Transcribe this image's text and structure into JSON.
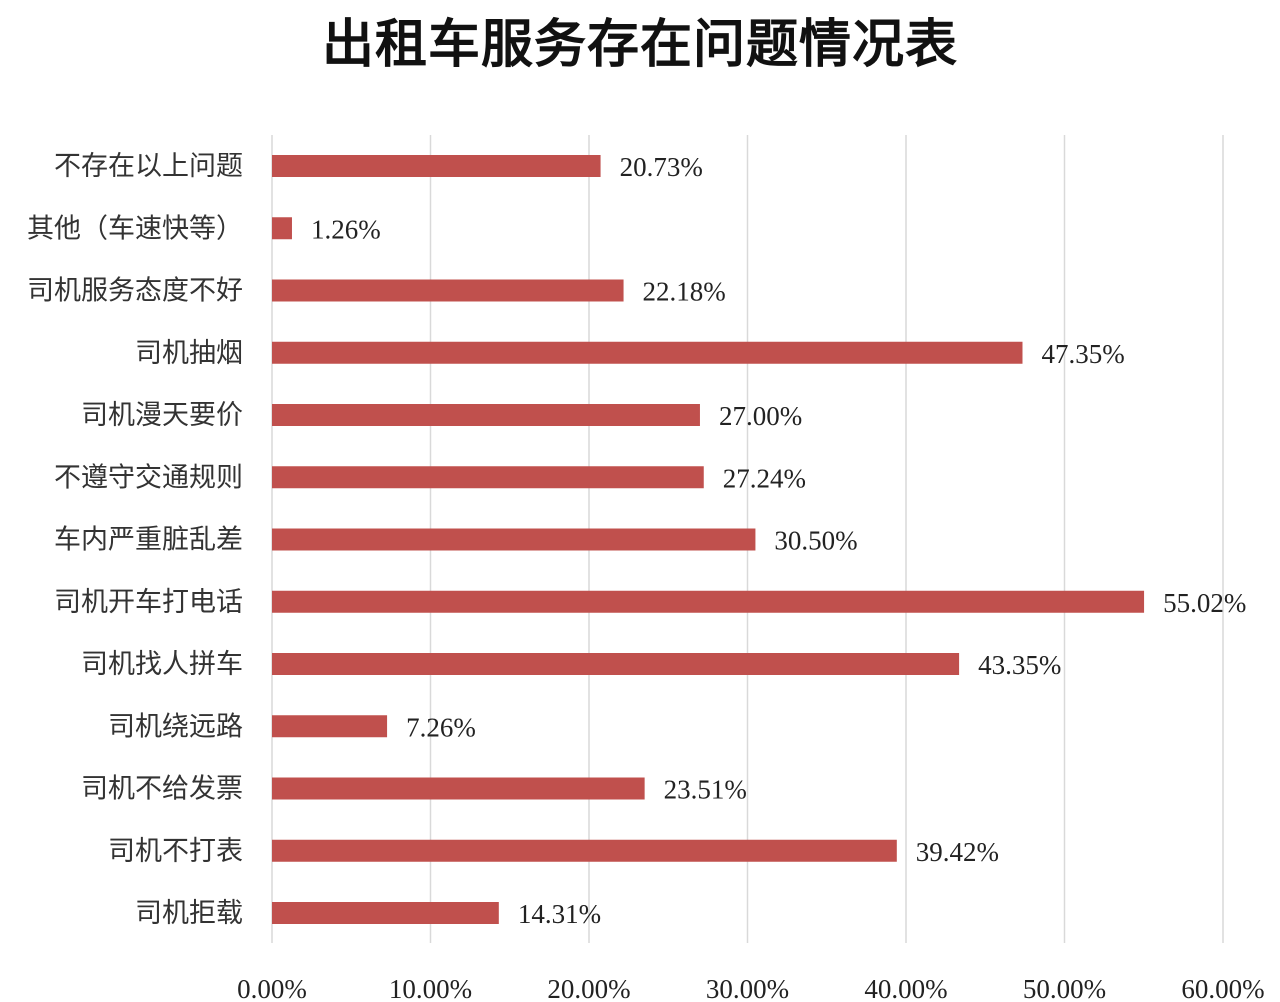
{
  "chart_data": {
    "type": "bar",
    "orientation": "horizontal",
    "title": "出租车服务存在问题情况表",
    "categories": [
      "不存在以上问题",
      "其他（车速快等）",
      "司机服务态度不好",
      "司机抽烟",
      "司机漫天要价",
      "不遵守交通规则",
      "车内严重脏乱差",
      "司机开车打电话",
      "司机找人拼车",
      "司机绕远路",
      "司机不给发票",
      "司机不打表",
      "司机拒载"
    ],
    "values": [
      20.73,
      1.26,
      22.18,
      47.35,
      27.0,
      27.24,
      30.5,
      55.02,
      43.35,
      7.26,
      23.51,
      39.42,
      14.31
    ],
    "value_labels": [
      "20.73%",
      "1.26%",
      "22.18%",
      "47.35%",
      "27.00%",
      "27.24%",
      "30.50%",
      "55.02%",
      "43.35%",
      "7.26%",
      "23.51%",
      "39.42%",
      "14.31%"
    ],
    "xlim": [
      0,
      60
    ],
    "xticks": [
      0,
      10,
      20,
      30,
      40,
      50,
      60
    ],
    "xtick_labels": [
      "0.00%",
      "10.00%",
      "20.00%",
      "30.00%",
      "40.00%",
      "50.00%",
      "60.00%"
    ],
    "grid": "vertical",
    "legend": "none",
    "xlabel": "",
    "ylabel": ""
  },
  "colors": {
    "bar": "#c0504d",
    "grid": "#d9d9d9",
    "text": "#222222"
  }
}
